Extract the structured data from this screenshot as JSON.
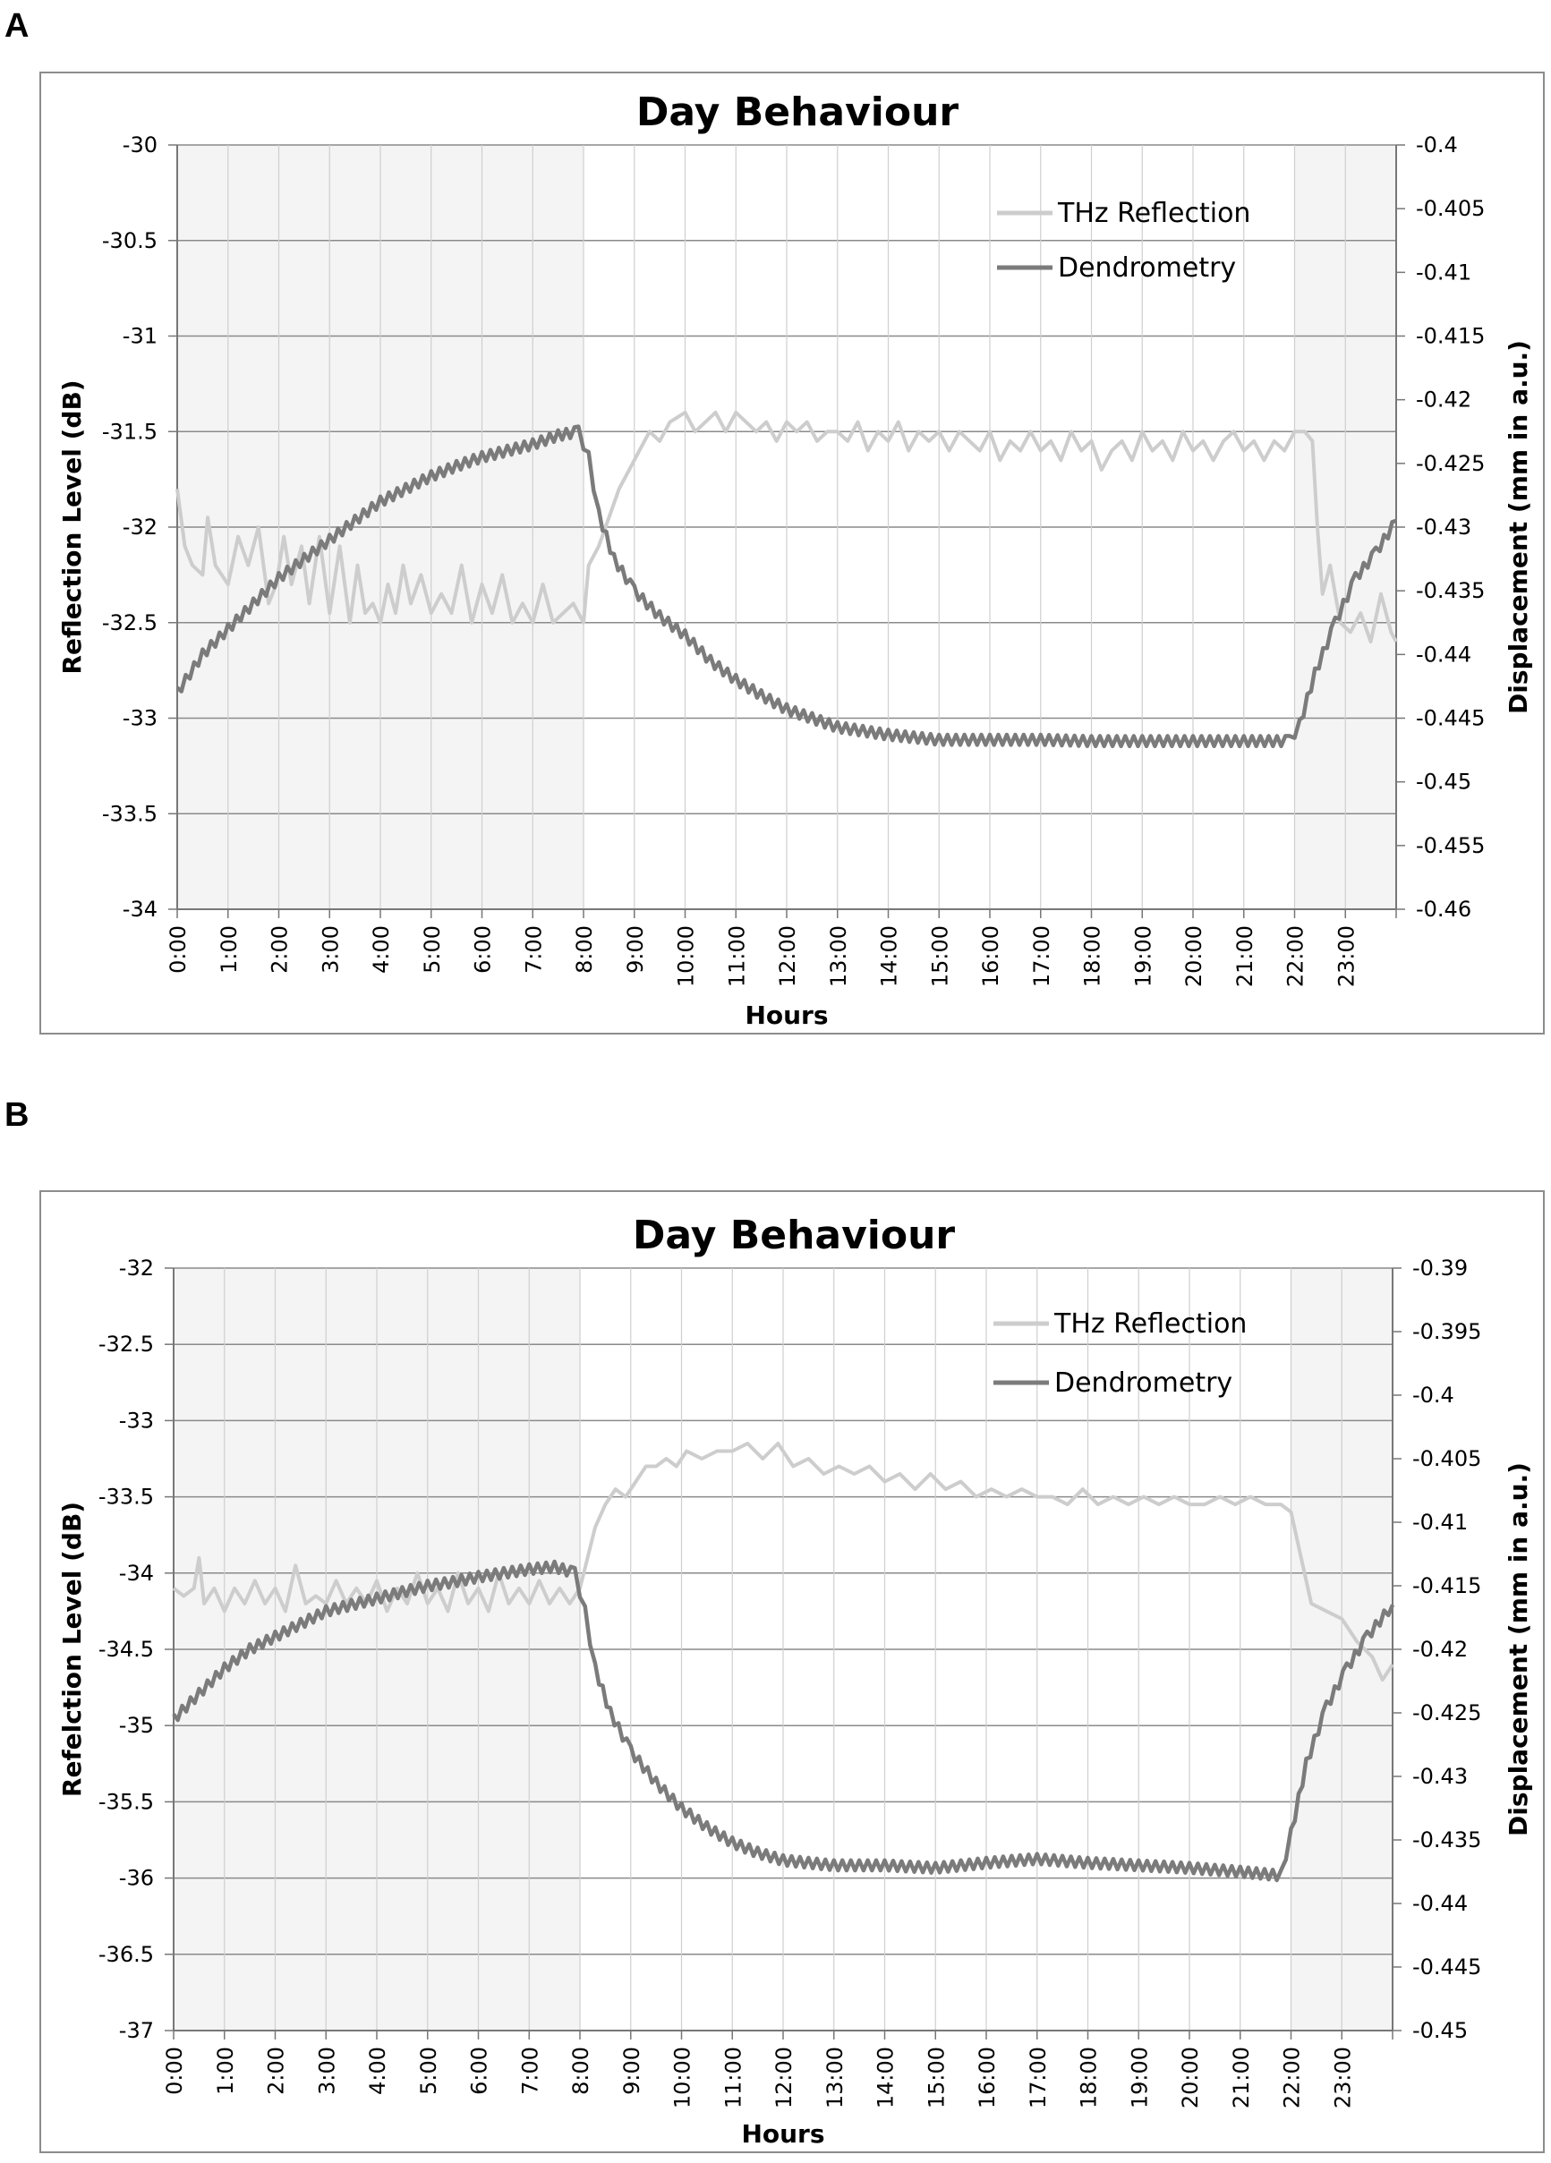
{
  "panels": [
    {
      "letter": "A"
    },
    {
      "letter": "B"
    }
  ],
  "chart_data": [
    {
      "type": "line",
      "title": "Day Behaviour",
      "xlabel": "Hours",
      "ylabel": "Reflection Level (dB)",
      "y2label": "Displacement (mm in a.u.)",
      "x_ticks": [
        "0:00",
        "1:00",
        "2:00",
        "3:00",
        "4:00",
        "5:00",
        "6:00",
        "7:00",
        "8:00",
        "9:00",
        "10:00",
        "11:00",
        "12:00",
        "13:00",
        "14:00",
        "15:00",
        "16:00",
        "17:00",
        "18:00",
        "19:00",
        "20:00",
        "21:00",
        "22:00",
        "23:00"
      ],
      "xlim": [
        0,
        24
      ],
      "ylim": [
        -34,
        -30
      ],
      "y_ticks": [
        "-30",
        "-30.5",
        "-31",
        "-31.5",
        "-32",
        "-32.5",
        "-33",
        "-33.5",
        "-34"
      ],
      "y2lim": [
        -0.46,
        -0.4
      ],
      "y2_ticks": [
        "-0.4",
        "-0.405",
        "-0.41",
        "-0.415",
        "-0.42",
        "-0.425",
        "-0.43",
        "-0.435",
        "-0.44",
        "-0.445",
        "-0.45",
        "-0.455",
        "-0.46"
      ],
      "night_shading": [
        [
          0,
          8
        ],
        [
          22,
          24
        ]
      ],
      "legend": [
        "THz Reflection",
        "Dendrometry"
      ],
      "colors": {
        "thz": "#cdcdcd",
        "dendro": "#7b7b7b",
        "shade": "#f4f4f4",
        "grid": "#cfcfcf"
      },
      "series": [
        {
          "name": "THz Reflection",
          "axis": "left",
          "x": [
            0,
            0.15,
            0.3,
            0.5,
            0.6,
            0.75,
            1.0,
            1.2,
            1.4,
            1.6,
            1.8,
            1.95,
            2.1,
            2.25,
            2.45,
            2.6,
            2.8,
            3.0,
            3.2,
            3.4,
            3.55,
            3.7,
            3.85,
            4.0,
            4.15,
            4.3,
            4.45,
            4.6,
            4.8,
            5.0,
            5.2,
            5.4,
            5.6,
            5.8,
            6.0,
            6.2,
            6.4,
            6.6,
            6.8,
            7.0,
            7.2,
            7.4,
            7.6,
            7.8,
            8.0,
            8.1,
            8.3,
            8.5,
            8.7,
            8.9,
            9.1,
            9.3,
            9.5,
            9.7,
            10.0,
            10.2,
            10.4,
            10.6,
            10.8,
            11.0,
            11.2,
            11.4,
            11.6,
            11.8,
            12.0,
            12.2,
            12.4,
            12.6,
            12.8,
            13.0,
            13.2,
            13.4,
            13.6,
            13.8,
            14.0,
            14.2,
            14.4,
            14.6,
            14.8,
            15.0,
            15.2,
            15.4,
            15.6,
            15.8,
            16.0,
            16.2,
            16.4,
            16.6,
            16.8,
            17.0,
            17.2,
            17.4,
            17.6,
            17.8,
            18.0,
            18.2,
            18.4,
            18.6,
            18.8,
            19.0,
            19.2,
            19.4,
            19.6,
            19.8,
            20.0,
            20.2,
            20.4,
            20.6,
            20.8,
            21.0,
            21.2,
            21.4,
            21.6,
            21.8,
            22.0,
            22.2,
            22.35,
            22.45,
            22.55,
            22.7,
            22.9,
            23.1,
            23.3,
            23.5,
            23.7,
            23.9,
            24.0
          ],
          "y": [
            -31.8,
            -32.1,
            -32.2,
            -32.25,
            -31.95,
            -32.2,
            -32.3,
            -32.05,
            -32.2,
            -32.0,
            -32.4,
            -32.3,
            -32.05,
            -32.3,
            -32.1,
            -32.4,
            -32.05,
            -32.45,
            -32.1,
            -32.5,
            -32.2,
            -32.45,
            -32.4,
            -32.5,
            -32.3,
            -32.45,
            -32.2,
            -32.4,
            -32.25,
            -32.45,
            -32.35,
            -32.45,
            -32.2,
            -32.5,
            -32.3,
            -32.45,
            -32.25,
            -32.5,
            -32.4,
            -32.5,
            -32.3,
            -32.5,
            -32.45,
            -32.4,
            -32.5,
            -32.2,
            -32.1,
            -31.95,
            -31.8,
            -31.7,
            -31.6,
            -31.5,
            -31.55,
            -31.45,
            -31.4,
            -31.5,
            -31.45,
            -31.4,
            -31.5,
            -31.4,
            -31.45,
            -31.5,
            -31.45,
            -31.55,
            -31.45,
            -31.5,
            -31.45,
            -31.55,
            -31.5,
            -31.5,
            -31.55,
            -31.45,
            -31.6,
            -31.5,
            -31.55,
            -31.45,
            -31.6,
            -31.5,
            -31.55,
            -31.5,
            -31.6,
            -31.5,
            -31.55,
            -31.6,
            -31.5,
            -31.65,
            -31.55,
            -31.6,
            -31.5,
            -31.6,
            -31.55,
            -31.65,
            -31.5,
            -31.6,
            -31.55,
            -31.7,
            -31.6,
            -31.55,
            -31.65,
            -31.5,
            -31.6,
            -31.55,
            -31.65,
            -31.5,
            -31.6,
            -31.55,
            -31.65,
            -31.55,
            -31.5,
            -31.6,
            -31.55,
            -31.65,
            -31.55,
            -31.6,
            -31.5,
            -31.5,
            -31.55,
            -32.0,
            -32.35,
            -32.2,
            -32.5,
            -32.55,
            -32.45,
            -32.6,
            -32.35,
            -32.55,
            -32.6
          ],
          "note": "approximate values"
        },
        {
          "name": "Dendrometry",
          "axis": "right",
          "x": [
            0,
            0.5,
            1,
            1.5,
            2,
            2.5,
            3,
            3.5,
            4,
            4.5,
            5,
            5.5,
            6,
            6.5,
            7,
            7.5,
            7.9,
            8.1,
            8.3,
            8.6,
            9,
            9.5,
            10,
            10.5,
            11,
            11.5,
            12,
            12.5,
            13,
            13.5,
            14,
            15,
            16,
            17,
            18,
            19,
            20,
            21,
            21.9,
            22.1,
            22.4,
            22.8,
            23.2,
            23.6,
            24
          ],
          "y": [
            -0.443,
            -0.44,
            -0.438,
            -0.436,
            -0.434,
            -0.4325,
            -0.431,
            -0.4295,
            -0.428,
            -0.427,
            -0.426,
            -0.4252,
            -0.4245,
            -0.424,
            -0.4235,
            -0.4228,
            -0.4225,
            -0.4245,
            -0.429,
            -0.4325,
            -0.435,
            -0.437,
            -0.4385,
            -0.4405,
            -0.442,
            -0.4432,
            -0.4443,
            -0.445,
            -0.4457,
            -0.446,
            -0.4463,
            -0.4467,
            -0.4467,
            -0.4467,
            -0.4468,
            -0.4468,
            -0.4468,
            -0.4468,
            -0.4468,
            -0.4455,
            -0.4415,
            -0.4375,
            -0.434,
            -0.432,
            -0.4295
          ]
        }
      ]
    },
    {
      "type": "line",
      "title": "Day Behaviour",
      "xlabel": "Hours",
      "ylabel": "Refelction Level (dB)",
      "y2label": "Displacement (mm in a.u.)",
      "x_ticks": [
        "0:00",
        "1:00",
        "2:00",
        "3:00",
        "4:00",
        "5:00",
        "6:00",
        "7:00",
        "8:00",
        "9:00",
        "10:00",
        "11:00",
        "12:00",
        "13:00",
        "14:00",
        "15:00",
        "16:00",
        "17:00",
        "18:00",
        "19:00",
        "20:00",
        "21:00",
        "22:00",
        "23:00"
      ],
      "xlim": [
        0,
        24
      ],
      "ylim": [
        -37,
        -32
      ],
      "y_ticks": [
        "-32",
        "-32.5",
        "-33",
        "-33.5",
        "-34",
        "-34.5",
        "-35",
        "-35.5",
        "-36",
        "-36.5",
        "-37"
      ],
      "y2lim": [
        -0.45,
        -0.39
      ],
      "y2_ticks": [
        "-0.39",
        "-0.395",
        "-0.4",
        "-0.405",
        "-0.41",
        "-0.415",
        "-0.42",
        "-0.425",
        "-0.43",
        "-0.435",
        "-0.44",
        "-0.445",
        "-0.45"
      ],
      "night_shading": [
        [
          0,
          8
        ],
        [
          22,
          24
        ]
      ],
      "legend": [
        "THz Reflection",
        "Dendrometry"
      ],
      "colors": {
        "thz": "#cdcdcd",
        "dendro": "#7b7b7b",
        "shade": "#f4f4f4",
        "grid": "#cfcfcf"
      },
      "series": [
        {
          "name": "THz Reflection",
          "axis": "left",
          "x": [
            0,
            0.2,
            0.4,
            0.5,
            0.6,
            0.8,
            1.0,
            1.2,
            1.4,
            1.6,
            1.8,
            2.0,
            2.2,
            2.4,
            2.6,
            2.8,
            3.0,
            3.2,
            3.4,
            3.6,
            3.8,
            4.0,
            4.2,
            4.4,
            4.6,
            4.8,
            5.0,
            5.2,
            5.4,
            5.6,
            5.8,
            6.0,
            6.2,
            6.4,
            6.6,
            6.8,
            7.0,
            7.2,
            7.4,
            7.6,
            7.8,
            8.0,
            8.15,
            8.3,
            8.5,
            8.7,
            8.9,
            9.1,
            9.3,
            9.5,
            9.7,
            9.9,
            10.1,
            10.4,
            10.7,
            11.0,
            11.3,
            11.6,
            11.9,
            12.2,
            12.5,
            12.8,
            13.1,
            13.4,
            13.7,
            14.0,
            14.3,
            14.6,
            14.9,
            15.2,
            15.5,
            15.8,
            16.1,
            16.4,
            16.7,
            17.0,
            17.3,
            17.6,
            17.9,
            18.2,
            18.5,
            18.8,
            19.1,
            19.4,
            19.7,
            20.0,
            20.3,
            20.6,
            20.9,
            21.2,
            21.5,
            21.8,
            22.0,
            22.2,
            22.4,
            22.7,
            23.0,
            23.3,
            23.6,
            23.8,
            24.0
          ],
          "y": [
            -34.1,
            -34.15,
            -34.1,
            -33.9,
            -34.2,
            -34.1,
            -34.25,
            -34.1,
            -34.2,
            -34.05,
            -34.2,
            -34.1,
            -34.25,
            -33.95,
            -34.2,
            -34.15,
            -34.2,
            -34.05,
            -34.2,
            -34.1,
            -34.2,
            -34.05,
            -34.25,
            -34.1,
            -34.2,
            -34.0,
            -34.2,
            -34.1,
            -34.25,
            -34.0,
            -34.2,
            -34.1,
            -34.25,
            -34.0,
            -34.2,
            -34.1,
            -34.2,
            -34.05,
            -34.2,
            -34.1,
            -34.2,
            -34.1,
            -33.9,
            -33.7,
            -33.55,
            -33.45,
            -33.5,
            -33.4,
            -33.3,
            -33.3,
            -33.25,
            -33.3,
            -33.2,
            -33.25,
            -33.2,
            -33.2,
            -33.15,
            -33.25,
            -33.15,
            -33.3,
            -33.25,
            -33.35,
            -33.3,
            -33.35,
            -33.3,
            -33.4,
            -33.35,
            -33.45,
            -33.35,
            -33.45,
            -33.4,
            -33.5,
            -33.45,
            -33.5,
            -33.45,
            -33.5,
            -33.5,
            -33.55,
            -33.45,
            -33.55,
            -33.5,
            -33.55,
            -33.5,
            -33.55,
            -33.5,
            -33.55,
            -33.55,
            -33.5,
            -33.55,
            -33.5,
            -33.55,
            -33.55,
            -33.6,
            -33.9,
            -34.2,
            -34.25,
            -34.3,
            -34.45,
            -34.55,
            -34.7,
            -34.6
          ],
          "note": "approximate values"
        },
        {
          "name": "Dendrometry",
          "axis": "right",
          "x": [
            0,
            0.5,
            1,
            1.5,
            2,
            2.5,
            3,
            3.5,
            4,
            4.5,
            5,
            5.5,
            6,
            6.5,
            7,
            7.5,
            7.9,
            8.1,
            8.3,
            8.6,
            9,
            9.5,
            10,
            10.5,
            11,
            11.5,
            12,
            12.5,
            13,
            13.5,
            14,
            15,
            16,
            17,
            18,
            19,
            20,
            21,
            21.8,
            22,
            22.3,
            22.7,
            23.1,
            23.5,
            24
          ],
          "y": [
            -0.4255,
            -0.4235,
            -0.4215,
            -0.42,
            -0.419,
            -0.418,
            -0.417,
            -0.4165,
            -0.416,
            -0.4155,
            -0.415,
            -0.4147,
            -0.4143,
            -0.414,
            -0.4137,
            -0.4135,
            -0.414,
            -0.417,
            -0.4215,
            -0.425,
            -0.428,
            -0.4305,
            -0.4325,
            -0.434,
            -0.4352,
            -0.436,
            -0.4366,
            -0.4368,
            -0.437,
            -0.437,
            -0.437,
            -0.4372,
            -0.4368,
            -0.4365,
            -0.4368,
            -0.437,
            -0.4372,
            -0.4375,
            -0.4378,
            -0.4345,
            -0.429,
            -0.4245,
            -0.4215,
            -0.419,
            -0.4165
          ]
        }
      ]
    }
  ]
}
